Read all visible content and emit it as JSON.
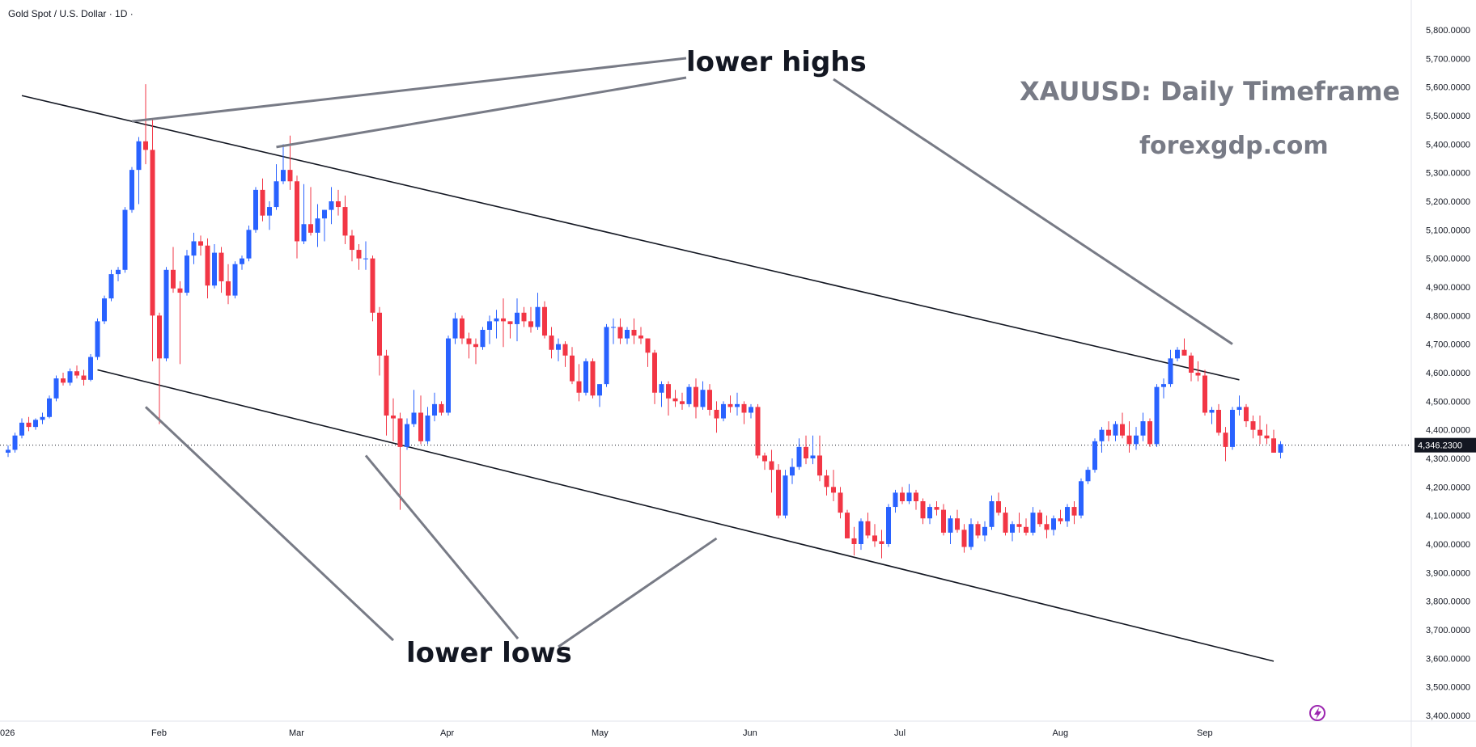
{
  "header": {
    "symbol_label": "Gold Spot / U.S. Dollar · 1D ·"
  },
  "annotations": {
    "lower_highs": "lower highs",
    "lower_lows": "lower lows",
    "headline": "XAUUSD: Daily Timeframe",
    "site": "forexgdp.com"
  },
  "colors": {
    "up": "#2962ff",
    "down": "#f23645",
    "wick_up": "#2962ff",
    "wick_down": "#f23645",
    "channel": "#131722",
    "annotation_line": "#787b86",
    "annotation_gray_text": "#787b86",
    "price_tag_bg": "#131722",
    "flash_icon": "#9c27b0"
  },
  "icons": {
    "flash": "lightning-icon"
  },
  "chart_data": {
    "type": "candlestick",
    "title": "Gold Spot / U.S. Dollar · 1D ·",
    "y_axis": {
      "range": [
        3400,
        5850
      ],
      "ticks": [
        "5,800.0000",
        "5,700.0000",
        "5,600.0000",
        "5,500.0000",
        "5,400.0000",
        "5,300.0000",
        "5,200.0000",
        "5,100.0000",
        "5,000.0000",
        "4,900.0000",
        "4,800.0000",
        "4,700.0000",
        "4,600.0000",
        "4,500.0000",
        "4,400.0000",
        "4,300.0000",
        "4,200.0000",
        "4,100.0000",
        "4,000.0000",
        "3,900.0000",
        "3,800.0000",
        "3,700.0000",
        "3,600.0000",
        "3,500.0000",
        "3,400.0000"
      ],
      "tick_values": [
        5800,
        5700,
        5600,
        5500,
        5400,
        5300,
        5200,
        5100,
        5000,
        4900,
        4800,
        4700,
        4600,
        4500,
        4400,
        4300,
        4200,
        4100,
        4000,
        3900,
        3800,
        3700,
        3600,
        3500,
        3400
      ]
    },
    "x_axis": {
      "labels": [
        {
          "text": "026",
          "day": 0
        },
        {
          "text": "Feb",
          "day": 22
        },
        {
          "text": "Mar",
          "day": 42
        },
        {
          "text": "Apr",
          "day": 64
        },
        {
          "text": "May",
          "day": 86
        },
        {
          "text": "Jun",
          "day": 108
        },
        {
          "text": "Jul",
          "day": 130
        },
        {
          "text": "Aug",
          "day": 153
        },
        {
          "text": "Sep",
          "day": 174
        }
      ]
    },
    "last_price": 4346.23,
    "last_price_label": "4,346.2300",
    "candles": [
      [
        4320,
        4345,
        4305,
        4330
      ],
      [
        4330,
        4390,
        4320,
        4380
      ],
      [
        4380,
        4440,
        4370,
        4425
      ],
      [
        4425,
        4445,
        4395,
        4410
      ],
      [
        4410,
        4440,
        4400,
        4435
      ],
      [
        4435,
        4460,
        4420,
        4445
      ],
      [
        4445,
        4520,
        4440,
        4510
      ],
      [
        4510,
        4590,
        4500,
        4580
      ],
      [
        4580,
        4600,
        4555,
        4565
      ],
      [
        4565,
        4615,
        4555,
        4605
      ],
      [
        4605,
        4625,
        4580,
        4590
      ],
      [
        4590,
        4610,
        4555,
        4575
      ],
      [
        4575,
        4665,
        4570,
        4655
      ],
      [
        4655,
        4790,
        4645,
        4780
      ],
      [
        4780,
        4870,
        4770,
        4860
      ],
      [
        4860,
        4960,
        4850,
        4945
      ],
      [
        4945,
        4970,
        4920,
        4960
      ],
      [
        4960,
        5180,
        4950,
        5170
      ],
      [
        5170,
        5320,
        5160,
        5310
      ],
      [
        5310,
        5425,
        5190,
        5410
      ],
      [
        5410,
        5610,
        5330,
        5380
      ],
      [
        5380,
        5490,
        4640,
        4800
      ],
      [
        4800,
        4810,
        4420,
        4650
      ],
      [
        4650,
        4970,
        4640,
        4960
      ],
      [
        4960,
        5040,
        4880,
        4895
      ],
      [
        4895,
        4920,
        4630,
        4880
      ],
      [
        4880,
        5030,
        4870,
        5010
      ],
      [
        5010,
        5090,
        4980,
        5060
      ],
      [
        5060,
        5080,
        5010,
        5045
      ],
      [
        5045,
        5070,
        4860,
        4905
      ],
      [
        4905,
        5050,
        4895,
        5020
      ],
      [
        5020,
        5040,
        4880,
        4920
      ],
      [
        4920,
        4980,
        4840,
        4870
      ],
      [
        4870,
        4990,
        4860,
        4980
      ],
      [
        4980,
        5010,
        4960,
        5000
      ],
      [
        5000,
        5115,
        4990,
        5100
      ],
      [
        5100,
        5250,
        5090,
        5240
      ],
      [
        5240,
        5280,
        5130,
        5150
      ],
      [
        5150,
        5200,
        5100,
        5180
      ],
      [
        5180,
        5330,
        5170,
        5270
      ],
      [
        5270,
        5400,
        5260,
        5310
      ],
      [
        5310,
        5430,
        5240,
        5270
      ],
      [
        5270,
        5290,
        5000,
        5060
      ],
      [
        5060,
        5260,
        5050,
        5120
      ],
      [
        5120,
        5250,
        5080,
        5090
      ],
      [
        5090,
        5190,
        5040,
        5140
      ],
      [
        5140,
        5170,
        5060,
        5170
      ],
      [
        5170,
        5250,
        5120,
        5200
      ],
      [
        5200,
        5240,
        5150,
        5180
      ],
      [
        5180,
        5220,
        5050,
        5080
      ],
      [
        5080,
        5100,
        4990,
        5030
      ],
      [
        5030,
        5050,
        4960,
        5000
      ],
      [
        5000,
        5060,
        4960,
        5000
      ],
      [
        5000,
        5010,
        4780,
        4810
      ],
      [
        4810,
        4830,
        4590,
        4660
      ],
      [
        4660,
        4680,
        4380,
        4450
      ],
      [
        4450,
        4510,
        4360,
        4440
      ],
      [
        4440,
        4460,
        4120,
        4340
      ],
      [
        4340,
        4440,
        4330,
        4420
      ],
      [
        4420,
        4540,
        4410,
        4460
      ],
      [
        4460,
        4520,
        4350,
        4360
      ],
      [
        4360,
        4480,
        4350,
        4450
      ],
      [
        4450,
        4530,
        4430,
        4490
      ],
      [
        4490,
        4500,
        4450,
        4460
      ],
      [
        4460,
        4730,
        4450,
        4720
      ],
      [
        4720,
        4810,
        4700,
        4790
      ],
      [
        4790,
        4800,
        4700,
        4720
      ],
      [
        4720,
        4740,
        4650,
        4700
      ],
      [
        4700,
        4720,
        4630,
        4690
      ],
      [
        4690,
        4760,
        4680,
        4750
      ],
      [
        4750,
        4800,
        4700,
        4780
      ],
      [
        4780,
        4820,
        4720,
        4790
      ],
      [
        4790,
        4860,
        4690,
        4780
      ],
      [
        4780,
        4780,
        4720,
        4770
      ],
      [
        4770,
        4860,
        4710,
        4810
      ],
      [
        4810,
        4830,
        4760,
        4780
      ],
      [
        4780,
        4830,
        4740,
        4760
      ],
      [
        4760,
        4880,
        4750,
        4830
      ],
      [
        4830,
        4850,
        4720,
        4730
      ],
      [
        4730,
        4760,
        4650,
        4680
      ],
      [
        4680,
        4720,
        4640,
        4700
      ],
      [
        4700,
        4710,
        4620,
        4660
      ],
      [
        4660,
        4690,
        4560,
        4570
      ],
      [
        4570,
        4630,
        4500,
        4530
      ],
      [
        4530,
        4650,
        4520,
        4640
      ],
      [
        4640,
        4650,
        4510,
        4520
      ],
      [
        4520,
        4560,
        4480,
        4560
      ],
      [
        4560,
        4770,
        4550,
        4760
      ],
      [
        4760,
        4790,
        4700,
        4760
      ],
      [
        4760,
        4790,
        4700,
        4720
      ],
      [
        4720,
        4760,
        4700,
        4750
      ],
      [
        4750,
        4790,
        4700,
        4730
      ],
      [
        4730,
        4760,
        4700,
        4720
      ],
      [
        4720,
        4720,
        4620,
        4670
      ],
      [
        4670,
        4680,
        4490,
        4530
      ],
      [
        4530,
        4570,
        4480,
        4560
      ],
      [
        4560,
        4570,
        4450,
        4510
      ],
      [
        4510,
        4540,
        4480,
        4500
      ],
      [
        4500,
        4530,
        4470,
        4490
      ],
      [
        4490,
        4560,
        4480,
        4550
      ],
      [
        4550,
        4580,
        4440,
        4480
      ],
      [
        4480,
        4570,
        4470,
        4540
      ],
      [
        4540,
        4560,
        4450,
        4470
      ],
      [
        4470,
        4500,
        4390,
        4440
      ],
      [
        4440,
        4500,
        4430,
        4490
      ],
      [
        4490,
        4520,
        4460,
        4480
      ],
      [
        4480,
        4530,
        4450,
        4490
      ],
      [
        4490,
        4500,
        4420,
        4460
      ],
      [
        4460,
        4490,
        4440,
        4480
      ],
      [
        4480,
        4490,
        4300,
        4310
      ],
      [
        4310,
        4320,
        4260,
        4290
      ],
      [
        4290,
        4330,
        4180,
        4260
      ],
      [
        4260,
        4280,
        4090,
        4100
      ],
      [
        4100,
        4260,
        4090,
        4240
      ],
      [
        4240,
        4300,
        4210,
        4270
      ],
      [
        4270,
        4370,
        4260,
        4340
      ],
      [
        4340,
        4380,
        4280,
        4300
      ],
      [
        4300,
        4380,
        4280,
        4310
      ],
      [
        4310,
        4380,
        4220,
        4240
      ],
      [
        4240,
        4260,
        4170,
        4200
      ],
      [
        4200,
        4260,
        4150,
        4180
      ],
      [
        4180,
        4200,
        4090,
        4110
      ],
      [
        4110,
        4120,
        4020,
        4020
      ],
      [
        4020,
        4060,
        3960,
        4000
      ],
      [
        4000,
        4090,
        3980,
        4080
      ],
      [
        4080,
        4110,
        4020,
        4030
      ],
      [
        4030,
        4070,
        3990,
        4010
      ],
      [
        4010,
        4050,
        3950,
        4000
      ],
      [
        4000,
        4140,
        3990,
        4130
      ],
      [
        4130,
        4190,
        4110,
        4180
      ],
      [
        4180,
        4200,
        4140,
        4150
      ],
      [
        4150,
        4210,
        4140,
        4180
      ],
      [
        4180,
        4190,
        4120,
        4150
      ],
      [
        4150,
        4160,
        4070,
        4090
      ],
      [
        4090,
        4140,
        4070,
        4130
      ],
      [
        4130,
        4150,
        4100,
        4120
      ],
      [
        4120,
        4140,
        4030,
        4040
      ],
      [
        4040,
        4100,
        4000,
        4090
      ],
      [
        4090,
        4120,
        4040,
        4050
      ],
      [
        4050,
        4070,
        3970,
        3990
      ],
      [
        3990,
        4090,
        3980,
        4070
      ],
      [
        4070,
        4080,
        4020,
        4030
      ],
      [
        4030,
        4080,
        4010,
        4060
      ],
      [
        4060,
        4170,
        4050,
        4150
      ],
      [
        4150,
        4180,
        4100,
        4110
      ],
      [
        4110,
        4130,
        4030,
        4040
      ],
      [
        4040,
        4080,
        4010,
        4070
      ],
      [
        4070,
        4110,
        4040,
        4060
      ],
      [
        4060,
        4090,
        4030,
        4040
      ],
      [
        4040,
        4130,
        4030,
        4110
      ],
      [
        4110,
        4120,
        4060,
        4070
      ],
      [
        4070,
        4100,
        4020,
        4050
      ],
      [
        4050,
        4100,
        4030,
        4090
      ],
      [
        4090,
        4120,
        4070,
        4080
      ],
      [
        4080,
        4140,
        4060,
        4130
      ],
      [
        4130,
        4150,
        4070,
        4100
      ],
      [
        4100,
        4230,
        4090,
        4220
      ],
      [
        4220,
        4270,
        4210,
        4260
      ],
      [
        4260,
        4370,
        4250,
        4360
      ],
      [
        4360,
        4410,
        4320,
        4400
      ],
      [
        4400,
        4430,
        4360,
        4380
      ],
      [
        4380,
        4430,
        4360,
        4420
      ],
      [
        4420,
        4460,
        4370,
        4380
      ],
      [
        4380,
        4430,
        4320,
        4350
      ],
      [
        4350,
        4410,
        4330,
        4380
      ],
      [
        4380,
        4460,
        4360,
        4430
      ],
      [
        4430,
        4440,
        4340,
        4350
      ],
      [
        4350,
        4560,
        4340,
        4550
      ],
      [
        4550,
        4580,
        4510,
        4560
      ],
      [
        4560,
        4680,
        4550,
        4650
      ],
      [
        4650,
        4690,
        4640,
        4680
      ],
      [
        4680,
        4720,
        4660,
        4660
      ],
      [
        4660,
        4670,
        4570,
        4600
      ],
      [
        4600,
        4640,
        4570,
        4590
      ],
      [
        4590,
        4610,
        4450,
        4460
      ],
      [
        4460,
        4480,
        4420,
        4470
      ],
      [
        4470,
        4490,
        4380,
        4390
      ],
      [
        4390,
        4410,
        4290,
        4340
      ],
      [
        4340,
        4480,
        4330,
        4470
      ],
      [
        4470,
        4520,
        4450,
        4480
      ],
      [
        4480,
        4490,
        4410,
        4430
      ],
      [
        4430,
        4450,
        4370,
        4400
      ],
      [
        4400,
        4450,
        4350,
        4380
      ],
      [
        4380,
        4420,
        4350,
        4370
      ],
      [
        4370,
        4400,
        4320,
        4320
      ],
      [
        4320,
        4360,
        4300,
        4350
      ]
    ],
    "channel_upper": [
      [
        2,
        5570
      ],
      [
        179,
        4575
      ]
    ],
    "channel_lower": [
      [
        13,
        4610
      ],
      [
        184,
        3590
      ]
    ],
    "legend": "none",
    "grid": false
  }
}
